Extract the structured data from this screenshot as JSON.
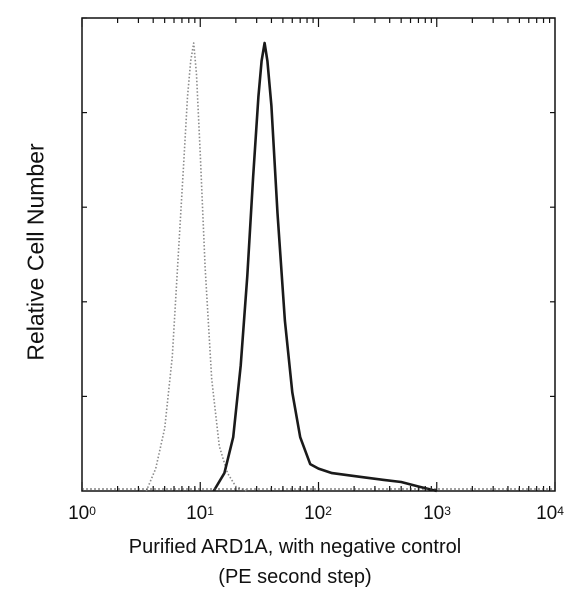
{
  "chart_data": {
    "type": "line",
    "title": "",
    "xlabel": "Purified ARD1A, with negative control",
    "xlabel_sub": "(PE second step)",
    "ylabel": "Relative Cell Number",
    "x_scale": "log",
    "xlim": [
      1,
      10000
    ],
    "ylim": [
      0,
      1
    ],
    "x_ticks": [
      {
        "base": "10",
        "exp": "0"
      },
      {
        "base": "10",
        "exp": "1"
      },
      {
        "base": "10",
        "exp": "2"
      },
      {
        "base": "10",
        "exp": "3"
      },
      {
        "base": "10",
        "exp": "4"
      }
    ],
    "grid": false,
    "legend": "none",
    "series": [
      {
        "style": "dotted",
        "color": "#8a8a8a",
        "x": [
          3.5,
          4.2,
          5.0,
          5.8,
          6.5,
          7.2,
          7.8,
          8.3,
          8.8,
          9.3,
          10.0,
          11.0,
          12.5,
          14.5,
          17.0,
          20.0,
          25.0
        ],
        "y": [
          0.0,
          0.05,
          0.14,
          0.3,
          0.52,
          0.72,
          0.88,
          0.96,
          1.0,
          0.93,
          0.75,
          0.5,
          0.25,
          0.1,
          0.04,
          0.01,
          0.0
        ]
      },
      {
        "style": "solid",
        "color": "#1a1a1a",
        "x": [
          13,
          16,
          19,
          22,
          25,
          28,
          31,
          33,
          35,
          37,
          40,
          45,
          52,
          60,
          70,
          85,
          100,
          130,
          180,
          250,
          350,
          500,
          700,
          1000
        ],
        "y": [
          0.0,
          0.04,
          0.12,
          0.28,
          0.48,
          0.7,
          0.88,
          0.96,
          1.0,
          0.96,
          0.86,
          0.62,
          0.38,
          0.22,
          0.12,
          0.06,
          0.05,
          0.04,
          0.035,
          0.03,
          0.025,
          0.02,
          0.01,
          0.0
        ]
      }
    ]
  }
}
